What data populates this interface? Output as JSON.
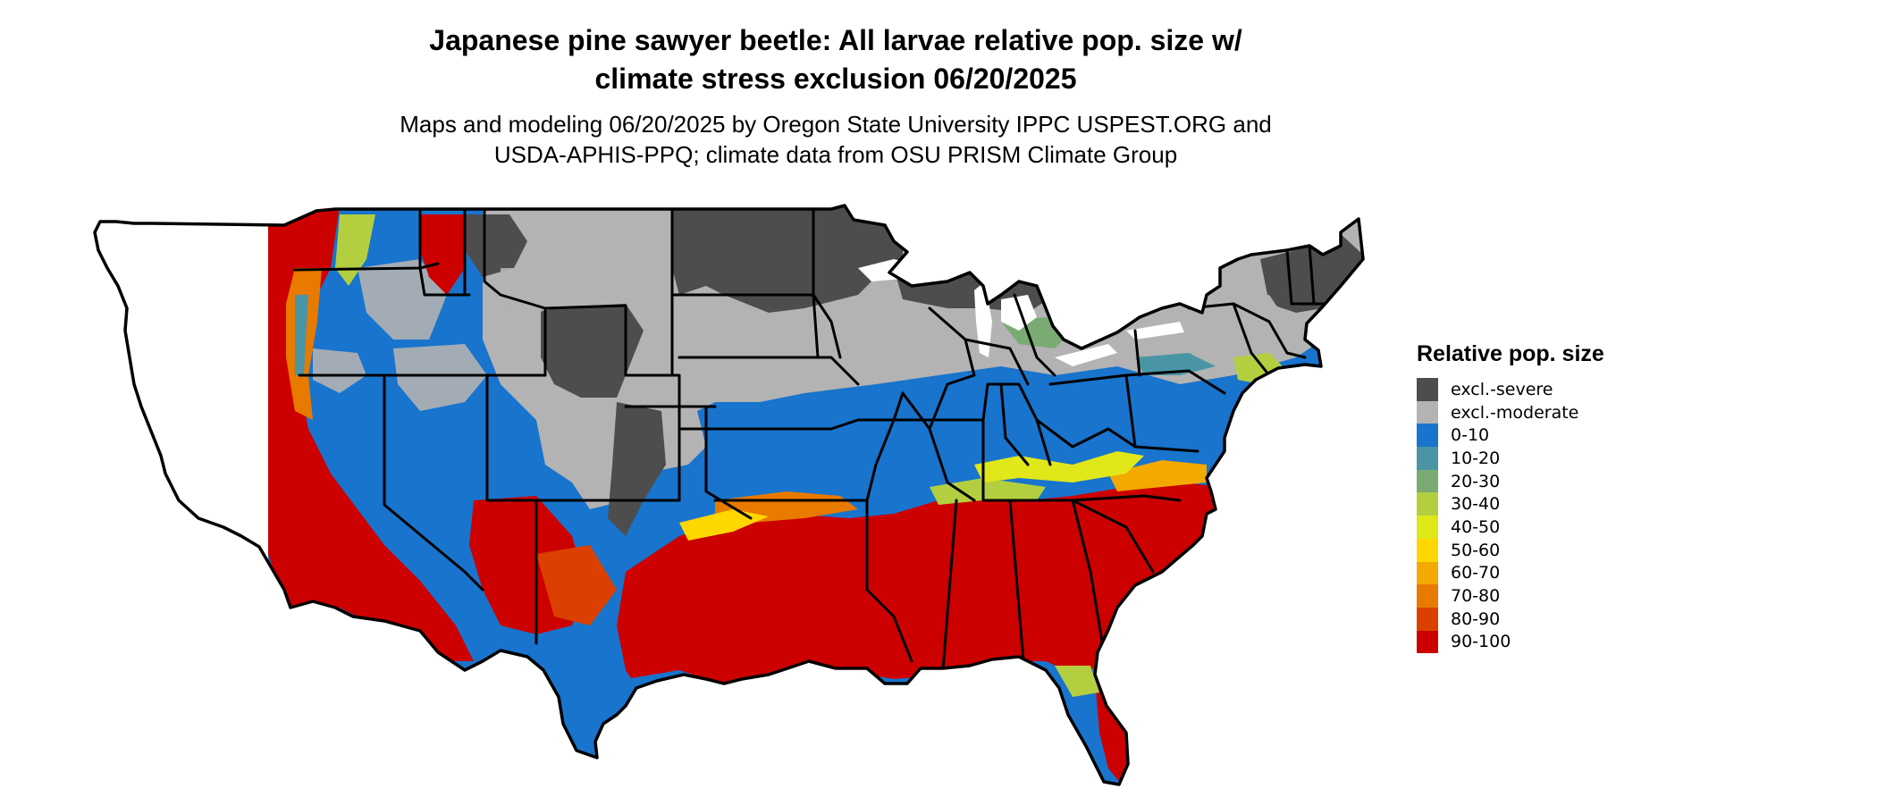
{
  "map": {
    "title_line1": "Japanese pine sawyer beetle: All larvae relative pop. size w/",
    "title_line2": "climate stress exclusion 06/20/2025",
    "subtitle_line1": "Maps and modeling 06/20/2025 by Oregon State University IPPC USPEST.ORG and",
    "subtitle_line2": "USDA-APHIS-PPQ; climate data from OSU PRISM Climate Group",
    "region": "Contiguous United States",
    "border_color": "#000000"
  },
  "legend": {
    "title": "Relative pop. size",
    "items": [
      {
        "label": "excl.-severe",
        "color": "#4d4d4d"
      },
      {
        "label": "excl.-moderate",
        "color": "#b3b3b3"
      },
      {
        "label": "0-10",
        "color": "#1874cd"
      },
      {
        "label": "10-20",
        "color": "#4a95a5"
      },
      {
        "label": "20-30",
        "color": "#7aab73"
      },
      {
        "label": "30-40",
        "color": "#b3cf3f"
      },
      {
        "label": "40-50",
        "color": "#e0e81a"
      },
      {
        "label": "50-60",
        "color": "#ffd700"
      },
      {
        "label": "60-70",
        "color": "#f2a900"
      },
      {
        "label": "70-80",
        "color": "#e87a00"
      },
      {
        "label": "80-90",
        "color": "#dc4000"
      },
      {
        "label": "90-100",
        "color": "#cd0000"
      }
    ]
  }
}
